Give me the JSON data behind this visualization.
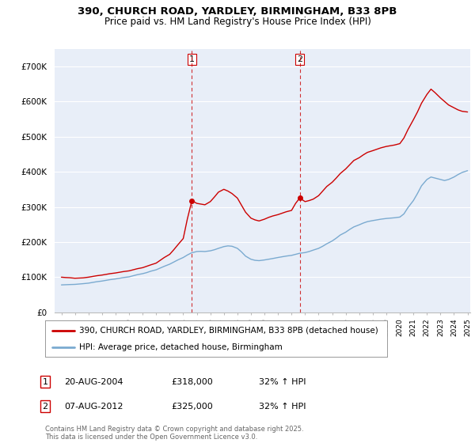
{
  "title_line1": "390, CHURCH ROAD, YARDLEY, BIRMINGHAM, B33 8PB",
  "title_line2": "Price paid vs. HM Land Registry's House Price Index (HPI)",
  "background_color": "#ffffff",
  "plot_bg_color": "#e8eef8",
  "grid_color": "#ffffff",
  "red_color": "#cc0000",
  "blue_color": "#7aaad0",
  "dashed_color": "#cc0000",
  "ylim": [
    0,
    750000
  ],
  "yticks": [
    0,
    100000,
    200000,
    300000,
    400000,
    500000,
    600000,
    700000
  ],
  "ytick_labels": [
    "£0",
    "£100K",
    "£200K",
    "£300K",
    "£400K",
    "£500K",
    "£600K",
    "£700K"
  ],
  "year_start": 1995,
  "year_end": 2025,
  "transaction1_date": 2004.64,
  "transaction1_price": 318000,
  "transaction2_date": 2012.6,
  "transaction2_price": 325000,
  "legend_line1": "390, CHURCH ROAD, YARDLEY, BIRMINGHAM, B33 8PB (detached house)",
  "legend_line2": "HPI: Average price, detached house, Birmingham",
  "ann1_date": "20-AUG-2004",
  "ann1_price": "£318,000",
  "ann1_hpi": "32% ↑ HPI",
  "ann2_date": "07-AUG-2012",
  "ann2_price": "£325,000",
  "ann2_hpi": "32% ↑ HPI",
  "footer": "Contains HM Land Registry data © Crown copyright and database right 2025.\nThis data is licensed under the Open Government Licence v3.0.",
  "red_x": [
    1995.0,
    1995.3,
    1995.6,
    1996.0,
    1996.3,
    1996.6,
    1997.0,
    1997.3,
    1997.6,
    1998.0,
    1998.3,
    1998.6,
    1999.0,
    1999.3,
    1999.6,
    2000.0,
    2000.3,
    2000.6,
    2001.0,
    2001.3,
    2001.6,
    2002.0,
    2002.3,
    2002.6,
    2003.0,
    2003.3,
    2003.6,
    2004.0,
    2004.3,
    2004.64,
    2005.0,
    2005.3,
    2005.6,
    2006.0,
    2006.3,
    2006.6,
    2007.0,
    2007.3,
    2007.6,
    2008.0,
    2008.3,
    2008.6,
    2009.0,
    2009.3,
    2009.6,
    2010.0,
    2010.3,
    2010.6,
    2011.0,
    2011.3,
    2011.6,
    2012.0,
    2012.3,
    2012.6,
    2013.0,
    2013.3,
    2013.6,
    2014.0,
    2014.3,
    2014.6,
    2015.0,
    2015.3,
    2015.6,
    2016.0,
    2016.3,
    2016.6,
    2017.0,
    2017.3,
    2017.6,
    2018.0,
    2018.3,
    2018.6,
    2019.0,
    2019.3,
    2019.6,
    2020.0,
    2020.3,
    2020.6,
    2021.0,
    2021.3,
    2021.6,
    2022.0,
    2022.3,
    2022.6,
    2023.0,
    2023.3,
    2023.6,
    2024.0,
    2024.3,
    2024.6,
    2025.0
  ],
  "red_y": [
    100000,
    99000,
    98500,
    97000,
    97500,
    98000,
    100000,
    102000,
    104000,
    106000,
    108000,
    110000,
    112000,
    114000,
    116000,
    118000,
    121000,
    124000,
    127000,
    131000,
    135000,
    140000,
    148000,
    156000,
    165000,
    178000,
    192000,
    210000,
    265000,
    318000,
    310000,
    308000,
    306000,
    315000,
    328000,
    342000,
    350000,
    345000,
    338000,
    325000,
    305000,
    285000,
    268000,
    263000,
    260000,
    265000,
    270000,
    274000,
    278000,
    282000,
    286000,
    290000,
    310000,
    325000,
    315000,
    318000,
    322000,
    332000,
    345000,
    358000,
    370000,
    382000,
    395000,
    408000,
    420000,
    432000,
    440000,
    448000,
    455000,
    460000,
    464000,
    468000,
    472000,
    474000,
    476000,
    480000,
    496000,
    520000,
    548000,
    570000,
    595000,
    620000,
    635000,
    625000,
    610000,
    600000,
    590000,
    582000,
    576000,
    572000,
    570000
  ],
  "blue_x": [
    1995.0,
    1995.3,
    1995.6,
    1996.0,
    1996.3,
    1996.6,
    1997.0,
    1997.3,
    1997.6,
    1998.0,
    1998.3,
    1998.6,
    1999.0,
    1999.3,
    1999.6,
    2000.0,
    2000.3,
    2000.6,
    2001.0,
    2001.3,
    2001.6,
    2002.0,
    2002.3,
    2002.6,
    2003.0,
    2003.3,
    2003.6,
    2004.0,
    2004.3,
    2004.6,
    2005.0,
    2005.3,
    2005.6,
    2006.0,
    2006.3,
    2006.6,
    2007.0,
    2007.3,
    2007.6,
    2008.0,
    2008.3,
    2008.6,
    2009.0,
    2009.3,
    2009.6,
    2010.0,
    2010.3,
    2010.6,
    2011.0,
    2011.3,
    2011.6,
    2012.0,
    2012.3,
    2012.6,
    2013.0,
    2013.3,
    2013.6,
    2014.0,
    2014.3,
    2014.6,
    2015.0,
    2015.3,
    2015.6,
    2016.0,
    2016.3,
    2016.6,
    2017.0,
    2017.3,
    2017.6,
    2018.0,
    2018.3,
    2018.6,
    2019.0,
    2019.3,
    2019.6,
    2020.0,
    2020.3,
    2020.6,
    2021.0,
    2021.3,
    2021.6,
    2022.0,
    2022.3,
    2022.6,
    2023.0,
    2023.3,
    2023.6,
    2024.0,
    2024.3,
    2024.6,
    2025.0
  ],
  "blue_y": [
    78000,
    78500,
    79000,
    79500,
    80500,
    81500,
    83000,
    85000,
    87000,
    89000,
    91000,
    93000,
    95000,
    97000,
    99000,
    101000,
    104000,
    107000,
    110000,
    113000,
    117000,
    121000,
    126000,
    131000,
    137000,
    143000,
    149000,
    156000,
    163000,
    169000,
    173000,
    173500,
    173000,
    175000,
    178000,
    182000,
    187000,
    189000,
    188000,
    182000,
    172000,
    160000,
    151000,
    148000,
    147000,
    149000,
    151000,
    153000,
    156000,
    158000,
    160000,
    162000,
    165000,
    168000,
    170000,
    173000,
    177000,
    182000,
    188000,
    195000,
    203000,
    211000,
    220000,
    228000,
    236000,
    243000,
    249000,
    254000,
    258000,
    261000,
    263000,
    265000,
    267000,
    268000,
    269000,
    271000,
    280000,
    298000,
    318000,
    338000,
    360000,
    378000,
    385000,
    382000,
    378000,
    375000,
    378000,
    385000,
    392000,
    398000,
    403000
  ]
}
